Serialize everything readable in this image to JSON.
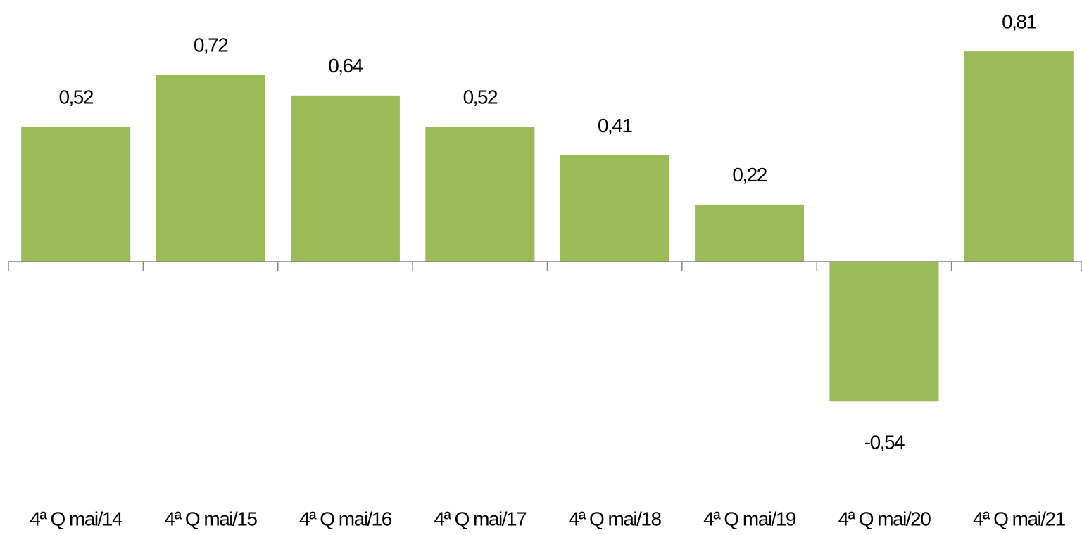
{
  "chart_data": {
    "type": "bar",
    "categories": [
      "4ª Q mai/14",
      "4ª Q mai/15",
      "4ª Q mai/16",
      "4ª Q mai/17",
      "4ª Q mai/18",
      "4ª Q mai/19",
      "4ª Q mai/20",
      "4ª Q mai/21"
    ],
    "values": [
      0.52,
      0.72,
      0.64,
      0.52,
      0.41,
      0.22,
      -0.54,
      0.81
    ],
    "value_labels": [
      "0,52",
      "0,72",
      "0,64",
      "0,52",
      "0,41",
      "0,22",
      "-0,54",
      "0,81"
    ],
    "color": "#9bbb59"
  }
}
